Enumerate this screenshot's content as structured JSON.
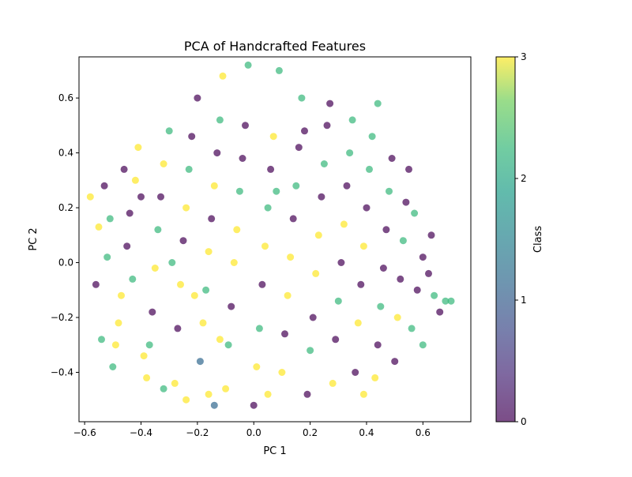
{
  "chart_data": {
    "type": "scatter",
    "title": "PCA of Handcrafted Features",
    "xlabel": "PC 1",
    "ylabel": "PC 2",
    "xlim": [
      -0.62,
      0.77
    ],
    "ylim": [
      -0.58,
      0.75
    ],
    "xticks": [
      -0.6,
      -0.4,
      -0.2,
      0.0,
      0.2,
      0.4,
      0.6
    ],
    "xtick_labels": [
      "−0.6",
      "−0.4",
      "−0.2",
      "0.0",
      "0.2",
      "0.4",
      "0.6"
    ],
    "yticks": [
      -0.4,
      -0.2,
      0.0,
      0.2,
      0.4,
      0.6
    ],
    "ytick_labels": [
      "−0.4",
      "−0.2",
      "0.0",
      "0.2",
      "0.4",
      "0.6"
    ],
    "grid": false,
    "colorbar": {
      "label": "Class",
      "min": 0,
      "max": 3,
      "ticks": [
        0,
        1,
        2,
        3
      ],
      "tick_labels": [
        "0",
        "1",
        "2",
        "3"
      ],
      "colormap": "viridis"
    },
    "class_colors": [
      "#440154",
      "#31688e",
      "#35b779",
      "#fde725"
    ],
    "marker_alpha": 0.7,
    "points": [
      [
        -0.55,
        0.13,
        3
      ],
      [
        -0.52,
        0.02,
        2
      ],
      [
        -0.54,
        -0.28,
        2
      ],
      [
        -0.5,
        -0.38,
        2
      ],
      [
        -0.48,
        -0.22,
        3
      ],
      [
        -0.47,
        -0.12,
        3
      ],
      [
        -0.45,
        0.06,
        0
      ],
      [
        -0.44,
        0.18,
        0
      ],
      [
        -0.42,
        0.3,
        3
      ],
      [
        -0.41,
        0.42,
        3
      ],
      [
        -0.38,
        -0.42,
        3
      ],
      [
        -0.37,
        -0.3,
        2
      ],
      [
        -0.36,
        -0.18,
        0
      ],
      [
        -0.35,
        -0.02,
        3
      ],
      [
        -0.34,
        0.12,
        2
      ],
      [
        -0.33,
        0.24,
        0
      ],
      [
        -0.32,
        0.36,
        3
      ],
      [
        -0.3,
        0.48,
        2
      ],
      [
        -0.28,
        -0.44,
        3
      ],
      [
        -0.27,
        -0.24,
        0
      ],
      [
        -0.26,
        -0.08,
        3
      ],
      [
        -0.25,
        0.08,
        0
      ],
      [
        -0.24,
        0.2,
        3
      ],
      [
        -0.23,
        0.34,
        2
      ],
      [
        -0.22,
        0.46,
        0
      ],
      [
        -0.2,
        0.6,
        0
      ],
      [
        -0.19,
        -0.36,
        1
      ],
      [
        -0.18,
        -0.22,
        3
      ],
      [
        -0.17,
        -0.1,
        2
      ],
      [
        -0.16,
        0.04,
        3
      ],
      [
        -0.15,
        0.16,
        0
      ],
      [
        -0.14,
        0.28,
        3
      ],
      [
        -0.13,
        0.4,
        0
      ],
      [
        -0.12,
        0.52,
        2
      ],
      [
        -0.11,
        0.68,
        3
      ],
      [
        -0.1,
        -0.46,
        3
      ],
      [
        -0.09,
        -0.3,
        2
      ],
      [
        -0.08,
        -0.16,
        0
      ],
      [
        -0.07,
        0.0,
        3
      ],
      [
        -0.06,
        0.12,
        3
      ],
      [
        -0.05,
        0.26,
        2
      ],
      [
        -0.04,
        0.38,
        0
      ],
      [
        -0.03,
        0.5,
        0
      ],
      [
        -0.02,
        0.72,
        2
      ],
      [
        0.0,
        -0.52,
        0
      ],
      [
        0.01,
        -0.38,
        3
      ],
      [
        0.02,
        -0.24,
        2
      ],
      [
        0.03,
        -0.08,
        0
      ],
      [
        0.04,
        0.06,
        3
      ],
      [
        0.05,
        0.2,
        2
      ],
      [
        0.06,
        0.34,
        0
      ],
      [
        0.07,
        0.46,
        3
      ],
      [
        0.09,
        0.7,
        2
      ],
      [
        0.1,
        -0.4,
        3
      ],
      [
        0.11,
        -0.26,
        0
      ],
      [
        0.12,
        -0.12,
        3
      ],
      [
        0.13,
        0.02,
        3
      ],
      [
        0.14,
        0.16,
        0
      ],
      [
        0.15,
        0.28,
        2
      ],
      [
        0.16,
        0.42,
        0
      ],
      [
        0.17,
        0.6,
        2
      ],
      [
        0.19,
        -0.48,
        0
      ],
      [
        0.2,
        -0.32,
        2
      ],
      [
        0.21,
        -0.2,
        0
      ],
      [
        0.22,
        -0.04,
        3
      ],
      [
        0.23,
        0.1,
        3
      ],
      [
        0.24,
        0.24,
        0
      ],
      [
        0.25,
        0.36,
        2
      ],
      [
        0.26,
        0.5,
        0
      ],
      [
        0.28,
        -0.44,
        3
      ],
      [
        0.29,
        -0.28,
        0
      ],
      [
        0.3,
        -0.14,
        2
      ],
      [
        0.31,
        0.0,
        0
      ],
      [
        0.32,
        0.14,
        3
      ],
      [
        0.33,
        0.28,
        0
      ],
      [
        0.34,
        0.4,
        2
      ],
      [
        0.35,
        0.52,
        2
      ],
      [
        0.36,
        -0.4,
        0
      ],
      [
        0.37,
        -0.22,
        3
      ],
      [
        0.38,
        -0.08,
        0
      ],
      [
        0.39,
        0.06,
        3
      ],
      [
        0.4,
        0.2,
        0
      ],
      [
        0.41,
        0.34,
        2
      ],
      [
        0.42,
        0.46,
        2
      ],
      [
        0.43,
        -0.42,
        3
      ],
      [
        0.44,
        -0.3,
        0
      ],
      [
        0.45,
        -0.16,
        2
      ],
      [
        0.46,
        -0.02,
        0
      ],
      [
        0.47,
        0.12,
        0
      ],
      [
        0.48,
        0.26,
        2
      ],
      [
        0.49,
        0.38,
        0
      ],
      [
        0.5,
        -0.36,
        0
      ],
      [
        0.51,
        -0.2,
        3
      ],
      [
        0.52,
        -0.06,
        0
      ],
      [
        0.53,
        0.08,
        2
      ],
      [
        0.54,
        0.22,
        0
      ],
      [
        0.55,
        0.34,
        0
      ],
      [
        0.56,
        -0.24,
        2
      ],
      [
        0.58,
        -0.1,
        0
      ],
      [
        0.6,
        0.02,
        0
      ],
      [
        0.62,
        -0.04,
        0
      ],
      [
        0.64,
        -0.12,
        2
      ],
      [
        0.66,
        -0.18,
        0
      ],
      [
        0.68,
        -0.14,
        2
      ],
      [
        0.7,
        -0.14,
        2
      ],
      [
        -0.58,
        0.24,
        3
      ],
      [
        -0.56,
        -0.08,
        0
      ],
      [
        -0.53,
        0.28,
        0
      ],
      [
        -0.51,
        0.16,
        2
      ],
      [
        -0.49,
        -0.3,
        3
      ],
      [
        -0.46,
        0.34,
        0
      ],
      [
        -0.43,
        -0.06,
        2
      ],
      [
        -0.4,
        0.24,
        0
      ],
      [
        -0.39,
        -0.34,
        3
      ],
      [
        -0.29,
        0.0,
        2
      ],
      [
        -0.21,
        -0.12,
        3
      ],
      [
        -0.12,
        -0.28,
        3
      ],
      [
        0.08,
        0.26,
        2
      ],
      [
        0.18,
        0.48,
        0
      ],
      [
        0.27,
        0.58,
        0
      ],
      [
        0.44,
        0.58,
        2
      ],
      [
        0.57,
        0.18,
        2
      ],
      [
        0.6,
        -0.3,
        2
      ],
      [
        0.63,
        0.1,
        0
      ],
      [
        -0.32,
        -0.46,
        2
      ],
      [
        -0.24,
        -0.5,
        3
      ],
      [
        -0.16,
        -0.48,
        3
      ],
      [
        -0.14,
        -0.52,
        1
      ],
      [
        0.05,
        -0.48,
        3
      ],
      [
        0.39,
        -0.48,
        3
      ]
    ]
  }
}
